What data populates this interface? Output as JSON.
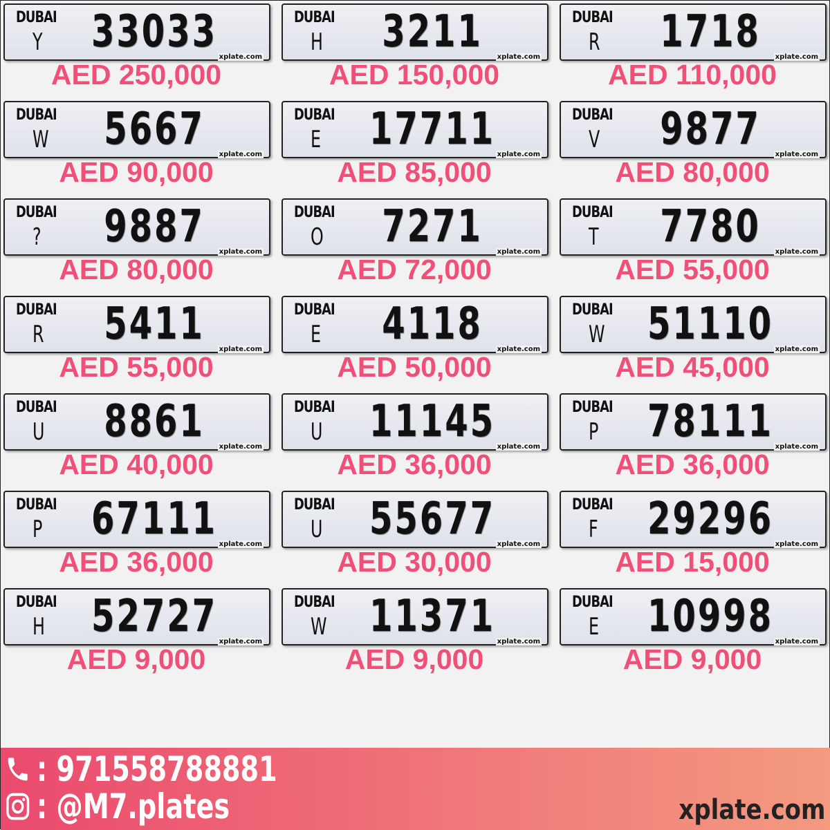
{
  "plates": [
    {
      "emirate": "DUBAI",
      "code": "Y",
      "number": "33033",
      "price": "AED 250,000",
      "watermark": "xplate.com"
    },
    {
      "emirate": "DUBAI",
      "code": "H",
      "number": "3211",
      "price": "AED 150,000",
      "watermark": "xplate.com"
    },
    {
      "emirate": "DUBAI",
      "code": "R",
      "number": "1718",
      "price": "AED 110,000",
      "watermark": "xplate.com"
    },
    {
      "emirate": "DUBAI",
      "code": "W",
      "number": "5667",
      "price": "AED 90,000",
      "watermark": "xplate.com"
    },
    {
      "emirate": "DUBAI",
      "code": "E",
      "number": "17711",
      "price": "AED 85,000",
      "watermark": "xplate.com"
    },
    {
      "emirate": "DUBAI",
      "code": "V",
      "number": "9877",
      "price": "AED 80,000",
      "watermark": "xplate.com"
    },
    {
      "emirate": "DUBAI",
      "code": "?",
      "number": "9887",
      "price": "AED 80,000",
      "watermark": "xplate.com"
    },
    {
      "emirate": "DUBAI",
      "code": "O",
      "number": "7271",
      "price": "AED 72,000",
      "watermark": "xplate.com"
    },
    {
      "emirate": "DUBAI",
      "code": "T",
      "number": "7780",
      "price": "AED 55,000",
      "watermark": "xplate.com"
    },
    {
      "emirate": "DUBAI",
      "code": "R",
      "number": "5411",
      "price": "AED 55,000",
      "watermark": "xplate.com"
    },
    {
      "emirate": "DUBAI",
      "code": "E",
      "number": "4118",
      "price": "AED 50,000",
      "watermark": "xplate.com"
    },
    {
      "emirate": "DUBAI",
      "code": "W",
      "number": "51110",
      "price": "AED 45,000",
      "watermark": "xplate.com"
    },
    {
      "emirate": "DUBAI",
      "code": "U",
      "number": "8861",
      "price": "AED 40,000",
      "watermark": "xplate.com"
    },
    {
      "emirate": "DUBAI",
      "code": "U",
      "number": "11145",
      "price": "AED 36,000",
      "watermark": "xplate.com"
    },
    {
      "emirate": "DUBAI",
      "code": "P",
      "number": "78111",
      "price": "AED 36,000",
      "watermark": "xplate.com"
    },
    {
      "emirate": "DUBAI",
      "code": "P",
      "number": "67111",
      "price": "AED 36,000",
      "watermark": "xplate.com"
    },
    {
      "emirate": "DUBAI",
      "code": "U",
      "number": "55677",
      "price": "AED 30,000",
      "watermark": "xplate.com"
    },
    {
      "emirate": "DUBAI",
      "code": "F",
      "number": "29296",
      "price": "AED 15,000",
      "watermark": "xplate.com"
    },
    {
      "emirate": "DUBAI",
      "code": "H",
      "number": "52727",
      "price": "AED 9,000",
      "watermark": "xplate.com"
    },
    {
      "emirate": "DUBAI",
      "code": "W",
      "number": "11371",
      "price": "AED 9,000",
      "watermark": "xplate.com"
    },
    {
      "emirate": "DUBAI",
      "code": "E",
      "number": "10998",
      "price": "AED 9,000",
      "watermark": "xplate.com"
    }
  ],
  "footer": {
    "phone": ": 971558788881",
    "instagram": ": @M7.plates",
    "site": "xplate.com",
    "phone_icon": "phone-icon",
    "instagram_icon": "instagram-icon"
  },
  "colors": {
    "price": "#f04f78",
    "footer_start": "#ea4a6e",
    "footer_end": "#f39a80"
  }
}
